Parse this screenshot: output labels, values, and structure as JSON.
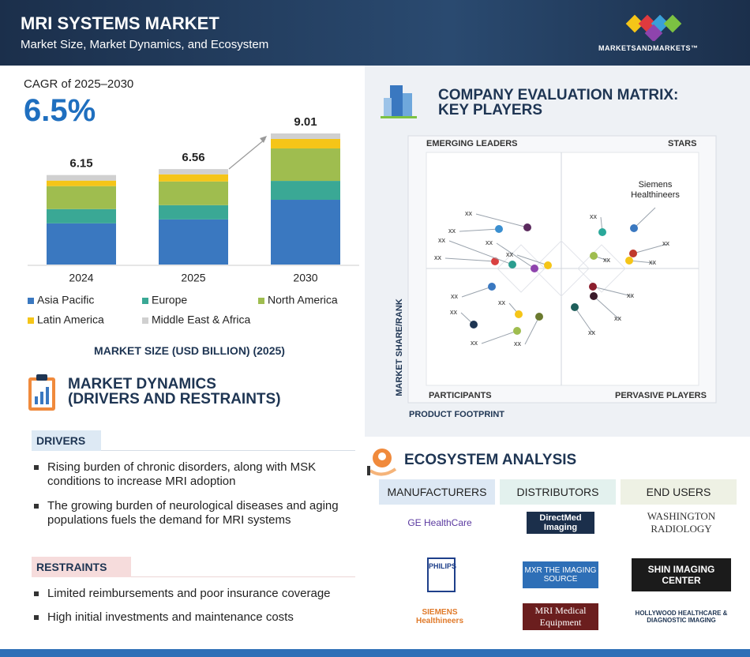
{
  "header": {
    "title": "MRI SYSTEMS MARKET",
    "subtitle": "Market Size, Market Dynamics, and Ecosystem",
    "brand": "MARKETSANDMARKETS™"
  },
  "cagr": {
    "label": "CAGR of 2025–2030",
    "value": "6.5%"
  },
  "chart_data": {
    "type": "bar",
    "stacked": true,
    "categories": [
      "2024",
      "2025",
      "2030"
    ],
    "totals": [
      6.15,
      6.56,
      9.01
    ],
    "series": [
      {
        "name": "Asia Pacific",
        "color": "#3a78c0",
        "values": [
          2.83,
          3.1,
          4.45
        ]
      },
      {
        "name": "Europe",
        "color": "#3aa895",
        "values": [
          0.98,
          0.98,
          1.3
        ]
      },
      {
        "name": "North America",
        "color": "#9fbd4f",
        "values": [
          1.58,
          1.63,
          2.23
        ]
      },
      {
        "name": "Latin America",
        "color": "#f5c518",
        "values": [
          0.38,
          0.49,
          0.65
        ]
      },
      {
        "name": "Middle East & Africa",
        "color": "#d0d0d0",
        "values": [
          0.38,
          0.36,
          0.38
        ]
      }
    ],
    "caption": "MARKET SIZE (USD BILLION) (2025)"
  },
  "dynamics": {
    "title": [
      "MARKET DYNAMICS",
      "(DRIVERS AND RESTRAINTS)"
    ],
    "drivers": {
      "heading": "DRIVERS",
      "items": [
        [
          "Rising burden of chronic disorders, along with MSK",
          "conditions to increase MRI adoption"
        ],
        [
          "The growing burden of neurological diseases and aging",
          "populations fuels the demand for MRI systems"
        ]
      ]
    },
    "restraints": {
      "heading": "RESTRAINTS",
      "items": [
        "Limited reimbursements and poor insurance coverage",
        "High initial investments and maintenance costs"
      ]
    }
  },
  "matrix": {
    "title": [
      "COMPANY EVALUATION MATRIX:",
      "KEY PLAYERS"
    ],
    "quadrants": {
      "top_left": "EMERGING LEADERS",
      "top_right": "STARS",
      "bottom_left": "PARTICIPANTS",
      "bottom_right": "PERVASIVE PLAYERS"
    },
    "y_label": "MARKET SHARE/RANK",
    "x_label": "PRODUCT FOOTPRINT",
    "companies": [
      "xx",
      "xx",
      "xx",
      "xx",
      "xx",
      "xx",
      "xx",
      "xx",
      "xx",
      "xx",
      "xx",
      "xx",
      "Siemens Healthineers",
      "xx",
      "xx",
      "xx",
      "xx",
      "xx",
      "xx"
    ]
  },
  "ecosystem": {
    "title": "ECOSYSTEM ANALYSIS",
    "columns": [
      "MANUFACTURERS",
      "DISTRIBUTORS",
      "END USERS"
    ],
    "logos": [
      [
        "GE HealthCare",
        "DirectMed Imaging",
        "WASHINGTON RADIOLOGY"
      ],
      [
        "PHILIPS",
        "MXR THE IMAGING SOURCE",
        "SHIN IMAGING CENTER"
      ],
      [
        "SIEMENS Healthineers",
        "MRI Medical Equipment",
        "HOLLYWOOD HEALTHCARE & DIAGNOSTIC IMAGING"
      ]
    ]
  }
}
